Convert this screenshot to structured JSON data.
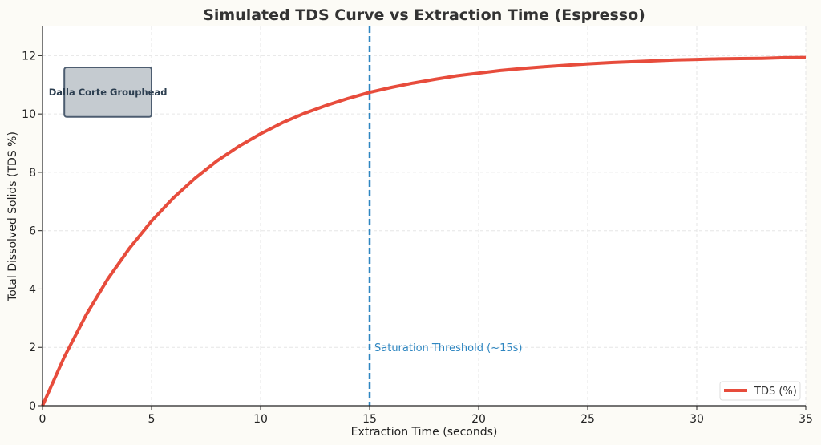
{
  "chart_data": {
    "type": "line",
    "title": "Simulated TDS Curve vs Extraction Time (Espresso)",
    "xlabel": "Extraction Time (seconds)",
    "ylabel": "Total Dissolved Solids (TDS %)",
    "xlim": [
      0,
      35
    ],
    "ylim": [
      0,
      13
    ],
    "xticks": [
      0,
      5,
      10,
      15,
      20,
      25,
      30,
      35
    ],
    "yticks": [
      0,
      2,
      4,
      6,
      8,
      10,
      12
    ],
    "grid": true,
    "legend_position": "bottom-right",
    "series": [
      {
        "name": "TDS (%)",
        "color": "#e74c3c",
        "x": [
          0,
          1,
          2,
          3,
          4,
          5,
          6,
          7,
          8,
          9,
          10,
          11,
          12,
          13,
          14,
          15,
          16,
          17,
          18,
          19,
          20,
          21,
          22,
          23,
          24,
          25,
          26,
          27,
          28,
          29,
          30,
          31,
          32,
          33,
          34,
          35
        ],
        "y": [
          0,
          1.67,
          3.11,
          4.35,
          5.41,
          6.33,
          7.12,
          7.8,
          8.39,
          8.89,
          9.32,
          9.7,
          10.02,
          10.29,
          10.53,
          10.74,
          10.91,
          11.06,
          11.19,
          11.31,
          11.4,
          11.49,
          11.56,
          11.62,
          11.67,
          11.72,
          11.76,
          11.79,
          11.82,
          11.85,
          11.87,
          11.89,
          11.9,
          11.91,
          11.93,
          11.94
        ]
      }
    ],
    "vline": {
      "x": 15,
      "color": "#2e86c1",
      "label": "Saturation Threshold (~15s)",
      "label_y": 2
    },
    "annotation_box": {
      "text": "Dalla Corte Grouphead",
      "x0": 1,
      "x1": 5,
      "y0": 9.9,
      "y1": 11.6,
      "fill": "#c5cbd0",
      "edge": "#4d5d70",
      "text_color": "#2c3e50"
    }
  }
}
